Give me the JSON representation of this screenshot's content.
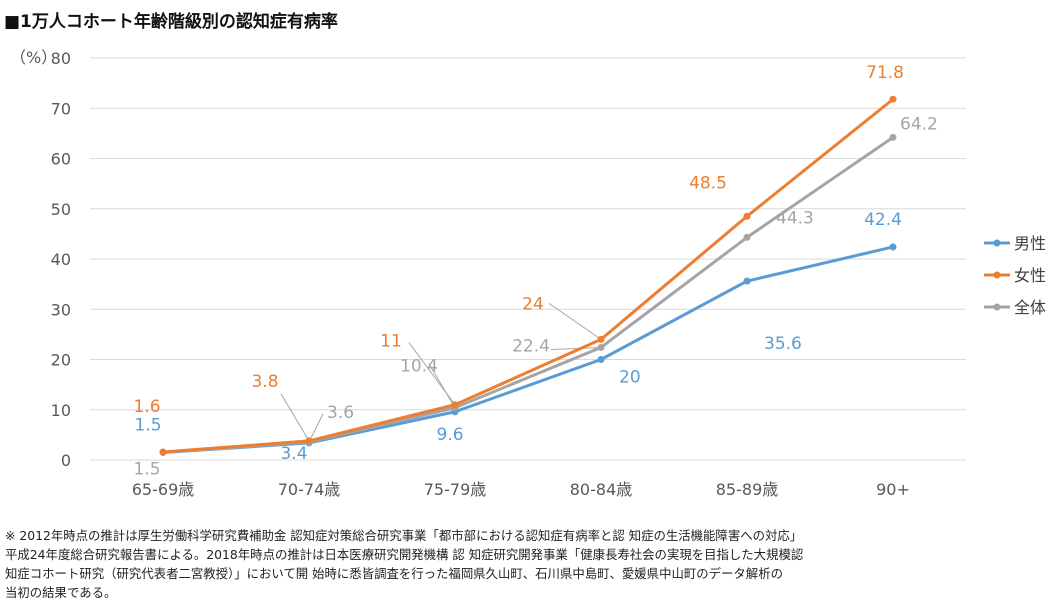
{
  "chart_data": {
    "type": "line",
    "title": "■1万人コホート年齢階級別の認知症有病率",
    "ylabel": "（%）",
    "ylim": [
      0,
      80
    ],
    "yticks": [
      0,
      10,
      20,
      30,
      40,
      50,
      60,
      70,
      80
    ],
    "categories": [
      "65-69歳",
      "70-74歳",
      "75-79歳",
      "80-84歳",
      "85-89歳",
      "90+"
    ],
    "legend_position": "right",
    "series": [
      {
        "name": "男性",
        "color": "#5b9bd5",
        "values": [
          1.5,
          3.4,
          9.6,
          20,
          35.6,
          42.4
        ],
        "labels": [
          "1.5",
          "3.4",
          "9.6",
          "20",
          "35.6",
          "42.4"
        ]
      },
      {
        "name": "女性",
        "color": "#ed7d31",
        "values": [
          1.6,
          3.8,
          11,
          24,
          48.5,
          71.8
        ],
        "labels": [
          "1.6",
          "3.8",
          "11",
          "24",
          "48.5",
          "71.8"
        ]
      },
      {
        "name": "全体",
        "color": "#a5a5a5",
        "values": [
          1.5,
          3.6,
          10.4,
          22.4,
          44.3,
          64.2
        ],
        "labels": [
          "1.5",
          "3.6",
          "10.4",
          "22.4",
          "44.3",
          "64.2"
        ]
      }
    ]
  },
  "footnote": "※ 2012年時点の推計は厚生労働科学研究費補助金 認知症対策総合研究事業「都市部における認知症有病率と認 知症の生活機能障害への対応」\n平成24年度総合研究報告書による。2018年時点の推計は日本医療研究開発機構 認 知症研究開発事業「健康長寿社会の実現を目指した大規模認\n知症コホート研究（研究代表者二宮教授）」において開 始時に悉皆調査を行った福岡県久山町、石川県中島町、愛媛県中山町のデータ解析の\n当初の結果である。"
}
